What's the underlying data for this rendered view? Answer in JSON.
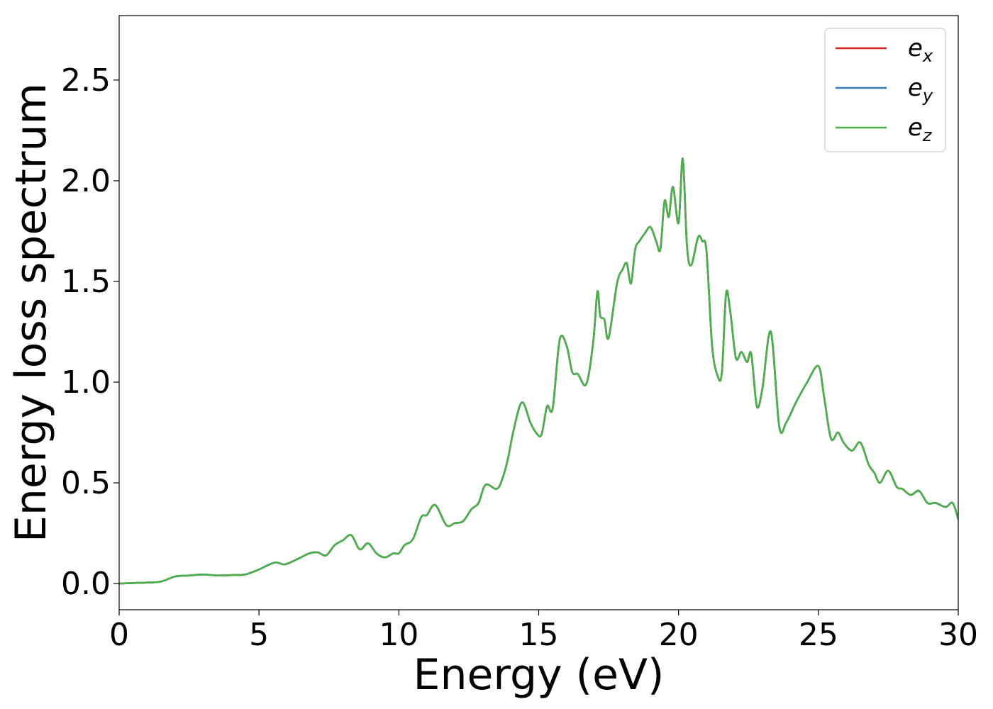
{
  "chart_data": {
    "type": "line",
    "title": "",
    "xlabel": "Energy (eV)",
    "ylabel": "Energy loss spectrum",
    "xlim": [
      0,
      30
    ],
    "ylim": [
      -0.13,
      2.82
    ],
    "xticks": [
      "0",
      "5",
      "10",
      "15",
      "20",
      "25",
      "30"
    ],
    "yticks": [
      "0.0",
      "0.5",
      "1.0",
      "1.5",
      "2.0",
      "2.5"
    ],
    "grid": false,
    "legend_position": "top-right",
    "series": [
      {
        "name": "e",
        "subscript": "x",
        "color": "#d62728",
        "x": [
          0,
          1,
          1.5,
          2,
          2.5,
          3,
          3.5,
          4,
          4.5,
          5,
          5.3,
          5.6,
          5.9,
          6.2,
          6.5,
          6.8,
          7.1,
          7.4,
          7.7,
          8,
          8.3,
          8.6,
          8.9,
          9.2,
          9.5,
          9.8,
          10,
          10.2,
          10.5,
          10.8,
          11,
          11.3,
          11.7,
          12,
          12.3,
          12.6,
          12.85,
          13.1,
          13.5,
          13.7,
          13.9,
          14.1,
          14.4,
          14.7,
          14.9,
          15.1,
          15.3,
          15.5,
          15.75,
          16,
          16.2,
          16.4,
          16.7,
          16.95,
          17.1,
          17.2,
          17.35,
          17.5,
          17.8,
          18,
          18.15,
          18.3,
          18.45,
          18.6,
          18.8,
          19,
          19.2,
          19.35,
          19.5,
          19.65,
          19.8,
          20,
          20.15,
          20.3,
          20.45,
          20.7,
          20.85,
          21,
          21.2,
          21.4,
          21.55,
          21.7,
          21.85,
          22.05,
          22.25,
          22.45,
          22.6,
          22.8,
          23,
          23.3,
          23.6,
          23.85,
          24.2,
          24.6,
          25,
          25.2,
          25.45,
          25.7,
          25.9,
          26.2,
          26.5,
          26.8,
          27,
          27.2,
          27.5,
          27.8,
          28,
          28.3,
          28.6,
          28.9,
          29.2,
          29.55,
          29.8,
          30
        ],
        "y": [
          0,
          0.005,
          0.01,
          0.035,
          0.04,
          0.045,
          0.04,
          0.042,
          0.045,
          0.07,
          0.09,
          0.105,
          0.095,
          0.11,
          0.13,
          0.15,
          0.155,
          0.14,
          0.19,
          0.215,
          0.24,
          0.17,
          0.2,
          0.15,
          0.13,
          0.15,
          0.15,
          0.19,
          0.22,
          0.33,
          0.34,
          0.39,
          0.29,
          0.3,
          0.31,
          0.37,
          0.4,
          0.49,
          0.47,
          0.52,
          0.62,
          0.76,
          0.9,
          0.8,
          0.75,
          0.74,
          0.88,
          0.87,
          1.21,
          1.18,
          1.05,
          1.04,
          0.99,
          1.2,
          1.45,
          1.33,
          1.31,
          1.22,
          1.49,
          1.56,
          1.59,
          1.49,
          1.66,
          1.7,
          1.74,
          1.77,
          1.7,
          1.66,
          1.9,
          1.82,
          1.97,
          1.79,
          2.11,
          1.68,
          1.58,
          1.72,
          1.7,
          1.65,
          1.18,
          1.03,
          1.05,
          1.44,
          1.35,
          1.12,
          1.15,
          1.1,
          1.14,
          0.88,
          0.97,
          1.25,
          0.78,
          0.8,
          0.9,
          1.0,
          1.08,
          0.93,
          0.72,
          0.75,
          0.7,
          0.66,
          0.7,
          0.59,
          0.55,
          0.5,
          0.56,
          0.48,
          0.47,
          0.44,
          0.46,
          0.4,
          0.4,
          0.38,
          0.4,
          0.32
        ]
      },
      {
        "name": "e",
        "subscript": "y",
        "color": "#377eb8",
        "x": [
          0,
          1,
          1.5,
          2,
          2.5,
          3,
          3.5,
          4,
          4.5,
          5,
          5.3,
          5.6,
          5.9,
          6.2,
          6.5,
          6.8,
          7.1,
          7.4,
          7.7,
          8,
          8.3,
          8.6,
          8.9,
          9.2,
          9.5,
          9.8,
          10,
          10.2,
          10.5,
          10.8,
          11,
          11.3,
          11.7,
          12,
          12.3,
          12.6,
          12.85,
          13.1,
          13.5,
          13.7,
          13.9,
          14.1,
          14.4,
          14.7,
          14.9,
          15.1,
          15.3,
          15.5,
          15.75,
          16,
          16.2,
          16.4,
          16.7,
          16.95,
          17.1,
          17.2,
          17.35,
          17.5,
          17.8,
          18,
          18.15,
          18.3,
          18.45,
          18.6,
          18.8,
          19,
          19.2,
          19.35,
          19.5,
          19.65,
          19.8,
          20,
          20.15,
          20.3,
          20.45,
          20.7,
          20.85,
          21,
          21.2,
          21.4,
          21.55,
          21.7,
          21.85,
          22.05,
          22.25,
          22.45,
          22.6,
          22.8,
          23,
          23.3,
          23.6,
          23.85,
          24.2,
          24.6,
          25,
          25.2,
          25.45,
          25.7,
          25.9,
          26.2,
          26.5,
          26.8,
          27,
          27.2,
          27.5,
          27.8,
          28,
          28.3,
          28.6,
          28.9,
          29.2,
          29.55,
          29.8,
          30
        ],
        "y": [
          0,
          0.005,
          0.01,
          0.035,
          0.04,
          0.045,
          0.04,
          0.042,
          0.045,
          0.07,
          0.09,
          0.105,
          0.095,
          0.11,
          0.13,
          0.15,
          0.155,
          0.14,
          0.19,
          0.215,
          0.24,
          0.17,
          0.2,
          0.15,
          0.13,
          0.15,
          0.15,
          0.19,
          0.22,
          0.33,
          0.34,
          0.39,
          0.29,
          0.3,
          0.31,
          0.37,
          0.4,
          0.49,
          0.47,
          0.52,
          0.62,
          0.76,
          0.9,
          0.8,
          0.75,
          0.74,
          0.88,
          0.87,
          1.21,
          1.18,
          1.05,
          1.04,
          0.99,
          1.2,
          1.45,
          1.33,
          1.31,
          1.22,
          1.49,
          1.56,
          1.59,
          1.49,
          1.66,
          1.7,
          1.74,
          1.77,
          1.7,
          1.66,
          1.9,
          1.82,
          1.97,
          1.79,
          2.11,
          1.68,
          1.58,
          1.72,
          1.7,
          1.65,
          1.18,
          1.03,
          1.05,
          1.44,
          1.35,
          1.12,
          1.15,
          1.1,
          1.14,
          0.88,
          0.97,
          1.25,
          0.78,
          0.8,
          0.9,
          1.0,
          1.08,
          0.93,
          0.72,
          0.75,
          0.7,
          0.66,
          0.7,
          0.59,
          0.55,
          0.5,
          0.56,
          0.48,
          0.47,
          0.44,
          0.46,
          0.4,
          0.4,
          0.38,
          0.4,
          0.32
        ]
      },
      {
        "name": "e",
        "subscript": "z",
        "color": "#4daf4a",
        "x": [
          0,
          1,
          1.5,
          2,
          2.5,
          3,
          3.5,
          4,
          4.5,
          5,
          5.3,
          5.6,
          5.9,
          6.2,
          6.5,
          6.8,
          7.1,
          7.4,
          7.7,
          8,
          8.3,
          8.6,
          8.9,
          9.2,
          9.5,
          9.8,
          10,
          10.2,
          10.5,
          10.8,
          11,
          11.3,
          11.7,
          12,
          12.3,
          12.6,
          12.85,
          13.1,
          13.5,
          13.7,
          13.9,
          14.1,
          14.4,
          14.7,
          14.9,
          15.1,
          15.3,
          15.5,
          15.75,
          16,
          16.2,
          16.4,
          16.7,
          16.95,
          17.1,
          17.2,
          17.35,
          17.5,
          17.8,
          18,
          18.15,
          18.3,
          18.45,
          18.6,
          18.8,
          19,
          19.2,
          19.35,
          19.5,
          19.65,
          19.8,
          20,
          20.15,
          20.3,
          20.45,
          20.7,
          20.85,
          21,
          21.2,
          21.4,
          21.55,
          21.7,
          21.85,
          22.05,
          22.25,
          22.45,
          22.6,
          22.8,
          23,
          23.3,
          23.6,
          23.85,
          24.2,
          24.6,
          25,
          25.2,
          25.45,
          25.7,
          25.9,
          26.2,
          26.5,
          26.8,
          27,
          27.2,
          27.5,
          27.8,
          28,
          28.3,
          28.6,
          28.9,
          29.2,
          29.55,
          29.8,
          30
        ],
        "y": [
          0,
          0.005,
          0.01,
          0.035,
          0.04,
          0.045,
          0.04,
          0.042,
          0.045,
          0.07,
          0.09,
          0.105,
          0.095,
          0.11,
          0.13,
          0.15,
          0.155,
          0.14,
          0.19,
          0.215,
          0.24,
          0.17,
          0.2,
          0.15,
          0.13,
          0.15,
          0.15,
          0.19,
          0.22,
          0.33,
          0.34,
          0.39,
          0.29,
          0.3,
          0.31,
          0.37,
          0.4,
          0.49,
          0.47,
          0.52,
          0.62,
          0.76,
          0.9,
          0.8,
          0.75,
          0.74,
          0.88,
          0.87,
          1.21,
          1.18,
          1.05,
          1.04,
          0.99,
          1.2,
          1.45,
          1.33,
          1.31,
          1.22,
          1.49,
          1.56,
          1.59,
          1.49,
          1.66,
          1.7,
          1.74,
          1.77,
          1.7,
          1.66,
          1.9,
          1.82,
          1.97,
          1.79,
          2.11,
          1.68,
          1.58,
          1.72,
          1.7,
          1.65,
          1.18,
          1.03,
          1.05,
          1.44,
          1.35,
          1.12,
          1.15,
          1.1,
          1.14,
          0.88,
          0.97,
          1.25,
          0.78,
          0.8,
          0.9,
          1.0,
          1.08,
          0.93,
          0.72,
          0.75,
          0.7,
          0.66,
          0.7,
          0.59,
          0.55,
          0.5,
          0.56,
          0.48,
          0.47,
          0.44,
          0.46,
          0.4,
          0.4,
          0.38,
          0.4,
          0.32
        ]
      }
    ]
  }
}
